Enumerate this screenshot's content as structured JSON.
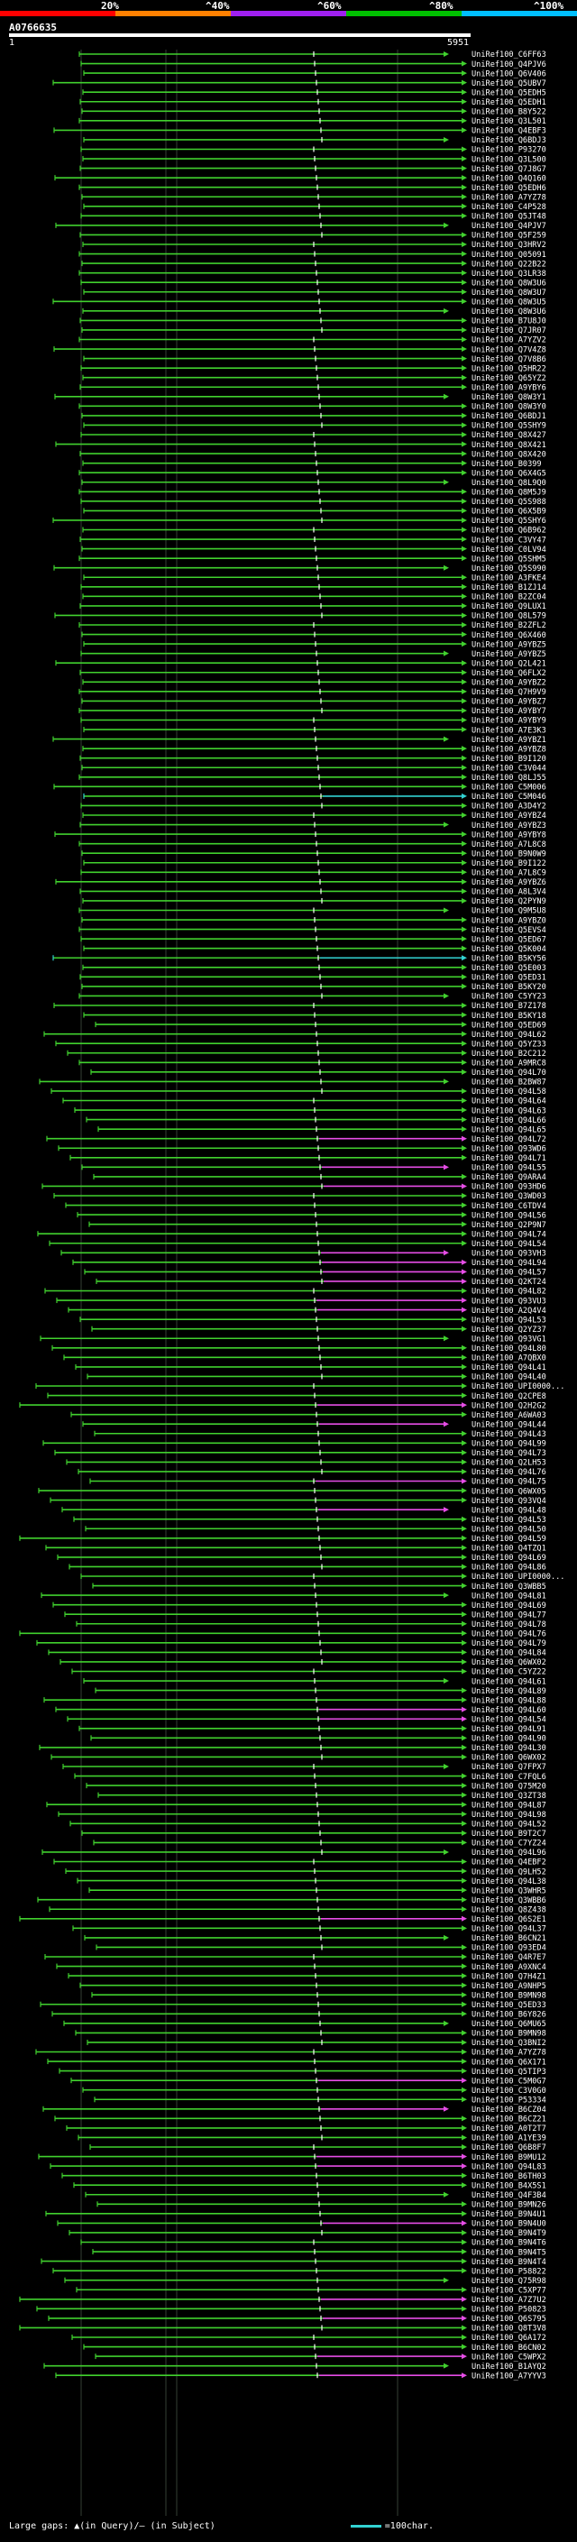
{
  "query_id": "A0766635",
  "ruler": {
    "start": "1",
    "end": "5951"
  },
  "scale": {
    "labels": [
      "20%",
      "^40%",
      "^60%",
      "^80%",
      "^100%"
    ],
    "colors": [
      "#ff0000",
      "#ff8000",
      "#a020f0",
      "#00c000",
      "#00bfff"
    ]
  },
  "row_colors": {
    "green": "#41d12e",
    "magenta": "#e64de6",
    "cyan": "#32d2d2"
  },
  "hits": [
    "UniRef100_C6FF63",
    "UniRef100_Q4PJV6",
    "UniRef100_Q6V406",
    "UniRef100_Q5UBV7",
    "UniRef100_Q5EDH5",
    "UniRef100_Q5EDH1",
    "UniRef100_B8Y522",
    "UniRef100_Q3L501",
    "UniRef100_Q4EBF3",
    "UniRef100_Q6BDJ3",
    "UniRef100_P93270",
    "UniRef100_Q3L500",
    "UniRef100_Q7J8G7",
    "UniRef100_Q4Q160",
    "UniRef100_Q5EDH6",
    "UniRef100_A7YZ78",
    "UniRef100_C4P528",
    "UniRef100_Q5JT48",
    "UniRef100_Q4PJV7",
    "UniRef100_Q5F259",
    "UniRef100_Q3HRV2",
    "UniRef100_Q05091",
    "UniRef100_Q22B22",
    "UniRef100_Q3LR38",
    "UniRef100_Q8W3U6",
    "UniRef100_Q8W3U7",
    "UniRef100_Q8W3U5",
    "UniRef100_Q8W3U6",
    "UniRef100_B7U8J0",
    "UniRef100_Q7JR07",
    "UniRef100_A7YZV2",
    "UniRef100_Q7V4Z8",
    "UniRef100_Q7V8B6",
    "UniRef100_Q5HR22",
    "UniRef100_Q65YZ2",
    "UniRef100_A9YBY6",
    "UniRef100_Q8W3Y1",
    "UniRef100_Q8W3Y0",
    "UniRef100_Q6BDJ1",
    "UniRef100_Q5SHY9",
    "UniRef100_Q8X427",
    "UniRef100_Q8X421",
    "UniRef100_Q8X420",
    "UniRef100_B0399",
    "UniRef100_Q6X4G5",
    "UniRef100_Q8L9Q0",
    "UniRef100_Q8M5J9",
    "UniRef100_Q5S988",
    "UniRef100_Q6X5B9",
    "UniRef100_Q5SHY6",
    "UniRef100_Q6B962",
    "UniRef100_C3VY47",
    "UniRef100_C0LV94",
    "UniRef100_Q5SHM5",
    "UniRef100_Q5S990",
    "UniRef100_A3FKE4",
    "UniRef100_B1ZJ14",
    "UniRef100_B2ZC04",
    "UniRef100_Q9LUX1",
    "UniRef100_Q8L579",
    "UniRef100_B2ZFL2",
    "UniRef100_Q6X460",
    "UniRef100_A9YBZ5",
    "UniRef100_A9YBZ5",
    "UniRef100_Q2L421",
    "UniRef100_Q6FLX2",
    "UniRef100_A9YBZ2",
    "UniRef100_Q7H9V9",
    "UniRef100_A9YBZ7",
    "UniRef100_A9YBY7",
    "UniRef100_A9YBY9",
    "UniRef100_A7E3K3",
    "UniRef100_A9YBZ1",
    "UniRef100_A9YBZ8",
    "UniRef100_B9I120",
    "UniRef100_C3V044",
    "UniRef100_Q8LJ55",
    "UniRef100_C5M006",
    "UniRef100_C5M046",
    "UniRef100_A3D4Y2",
    "UniRef100_A9YBZ4",
    "UniRef100_A9YBZ3",
    "UniRef100_A9YBY8",
    "UniRef100_A7L8C8",
    "UniRef100_B9N0W9",
    "UniRef100_B9I122",
    "UniRef100_A7L8C9",
    "UniRef100_A9YBZ6",
    "UniRef100_A8L3V4",
    "UniRef100_Q2PYN9",
    "UniRef100_Q9M5U8",
    "UniRef100_A9YBZ0",
    "UniRef100_Q5EVS4",
    "UniRef100_Q5ED67",
    "UniRef100_Q5K004",
    "UniRef100_B5KY56",
    "UniRef100_Q5E003",
    "UniRef100_Q5ED31",
    "UniRef100_B5KY20",
    "UniRef100_C5YY23",
    "UniRef100_B7Z178",
    "UniRef100_B5KY18",
    "UniRef100_Q5ED69",
    "UniRef100_Q94L62",
    "UniRef100_Q5YZ33",
    "UniRef100_B2C212",
    "UniRef100_A9MRC8",
    "UniRef100_Q94L70",
    "UniRef100_B2BW87",
    "UniRef100_Q94L58",
    "UniRef100_Q94L64",
    "UniRef100_Q94L63",
    "UniRef100_Q94L66",
    "UniRef100_Q94L65",
    "UniRef100_Q94L72",
    "UniRef100_Q93WD6",
    "UniRef100_Q94L71",
    "UniRef100_Q94L55",
    "UniRef100_Q9ARA4",
    "UniRef100_Q93HD6",
    "UniRef100_Q3WD03",
    "UniRef100_C6TDV4",
    "UniRef100_Q94L56",
    "UniRef100_Q2P9N7",
    "UniRef100_Q94L74",
    "UniRef100_Q94L54",
    "UniRef100_Q93VH3",
    "UniRef100_Q94L94",
    "UniRef100_Q94L57",
    "UniRef100_Q2KT24",
    "UniRef100_Q94L82",
    "UniRef100_Q93VU3",
    "UniRef100_A2Q4V4",
    "UniRef100_Q94L53",
    "UniRef100_Q2YZ37",
    "UniRef100_Q93VG1",
    "UniRef100_Q94L80",
    "UniRef100_A7QBX0",
    "UniRef100_Q94L41",
    "UniRef100_Q94L40",
    "UniRef100_UPI0000...",
    "UniRef100_Q2CPE8",
    "UniRef100_Q2H2G2",
    "UniRef100_A6WA03",
    "UniRef100_Q94L44",
    "UniRef100_Q94L43",
    "UniRef100_Q94L99",
    "UniRef100_Q94L73",
    "UniRef100_Q2LH53",
    "UniRef100_Q94L76",
    "UniRef100_Q94L75",
    "UniRef100_Q6WX05",
    "UniRef100_Q93VQ4",
    "UniRef100_Q94L48",
    "UniRef100_Q94L53",
    "UniRef100_Q94L50",
    "UniRef100_Q94L59",
    "UniRef100_Q4TZQ1",
    "UniRef100_Q94L69",
    "UniRef100_Q94L86",
    "UniRef100_UPI0000...",
    "UniRef100_Q3WBB5",
    "UniRef100_Q94L81",
    "UniRef100_Q94L69",
    "UniRef100_Q94L77",
    "UniRef100_Q94L78",
    "UniRef100_Q94L76",
    "UniRef100_Q94L79",
    "UniRef100_Q94L84",
    "UniRef100_Q6WX02",
    "UniRef100_C5YZ22",
    "UniRef100_Q94L61",
    "UniRef100_Q94L89",
    "UniRef100_Q94L88",
    "UniRef100_Q94L60",
    "UniRef100_Q94L54",
    "UniRef100_Q94L91",
    "UniRef100_Q94L90",
    "UniRef100_Q94L30",
    "UniRef100_Q6WX02",
    "UniRef100_Q7FPX7",
    "UniRef100_C7FQL6",
    "UniRef100_Q75M20",
    "UniRef100_Q3ZT38",
    "UniRef100_Q94L87",
    "UniRef100_Q94L98",
    "UniRef100_Q94L52",
    "UniRef100_B9T2C7",
    "UniRef100_C7YZ24",
    "UniRef100_Q94L96",
    "UniRef100_Q4EBF2",
    "UniRef100_Q9LH52",
    "UniRef100_Q94L38",
    "UniRef100_Q3WHR5",
    "UniRef100_Q3WBB6",
    "UniRef100_Q8Z438",
    "UniRef100_Q6S2E1",
    "UniRef100_Q94L37",
    "UniRef100_B6CN21",
    "UniRef100_Q93ED4",
    "UniRef100_Q4R7E7",
    "UniRef100_A9XNC4",
    "UniRef100_Q7H4Z1",
    "UniRef100_A9NHP5",
    "UniRef100_B9MN98",
    "UniRef100_Q5ED33",
    "UniRef100_B6Y826",
    "UniRef100_Q6MU65",
    "UniRef100_B9MN98",
    "UniRef100_Q3BNI2",
    "UniRef100_A7YZ78",
    "UniRef100_Q6X171",
    "UniRef100_Q5TIP3",
    "UniRef100_C5M0G7",
    "UniRef100_C3V0G0",
    "UniRef100_P53334",
    "UniRef100_B6CZ04",
    "UniRef100_B6CZ21",
    "UniRef100_A0T2T7",
    "UniRef100_A1YE39",
    "UniRef100_Q6B8F7",
    "UniRef100_B9MU12",
    "UniRef100_Q94L83",
    "UniRef100_B6TH03",
    "UniRef100_B4X5S1",
    "UniRef100_Q4F3B4",
    "UniRef100_B9MN26",
    "UniRef100_B9N4U1",
    "UniRef100_B9N4U0",
    "UniRef100_B9N4T9",
    "UniRef100_B9N4T6",
    "UniRef100_B9N4T5",
    "UniRef100_B9N4T4",
    "UniRef100_P58822",
    "UniRef100_Q75R98",
    "UniRef100_C5XP77",
    "UniRef100_A7Z7U2",
    "UniRef100_P50823",
    "UniRef100_Q6S795",
    "UniRef100_Q8T3V8",
    "UniRef100_Q6A172",
    "UniRef100_B6CN02",
    "UniRef100_C5WPX2",
    "UniRef100_B1AYQ2",
    "UniRef100_A7YYV3"
  ],
  "footer": {
    "text": "Large gaps: ▲(in Query)/– (in Subject)",
    "legend": "=100char."
  }
}
